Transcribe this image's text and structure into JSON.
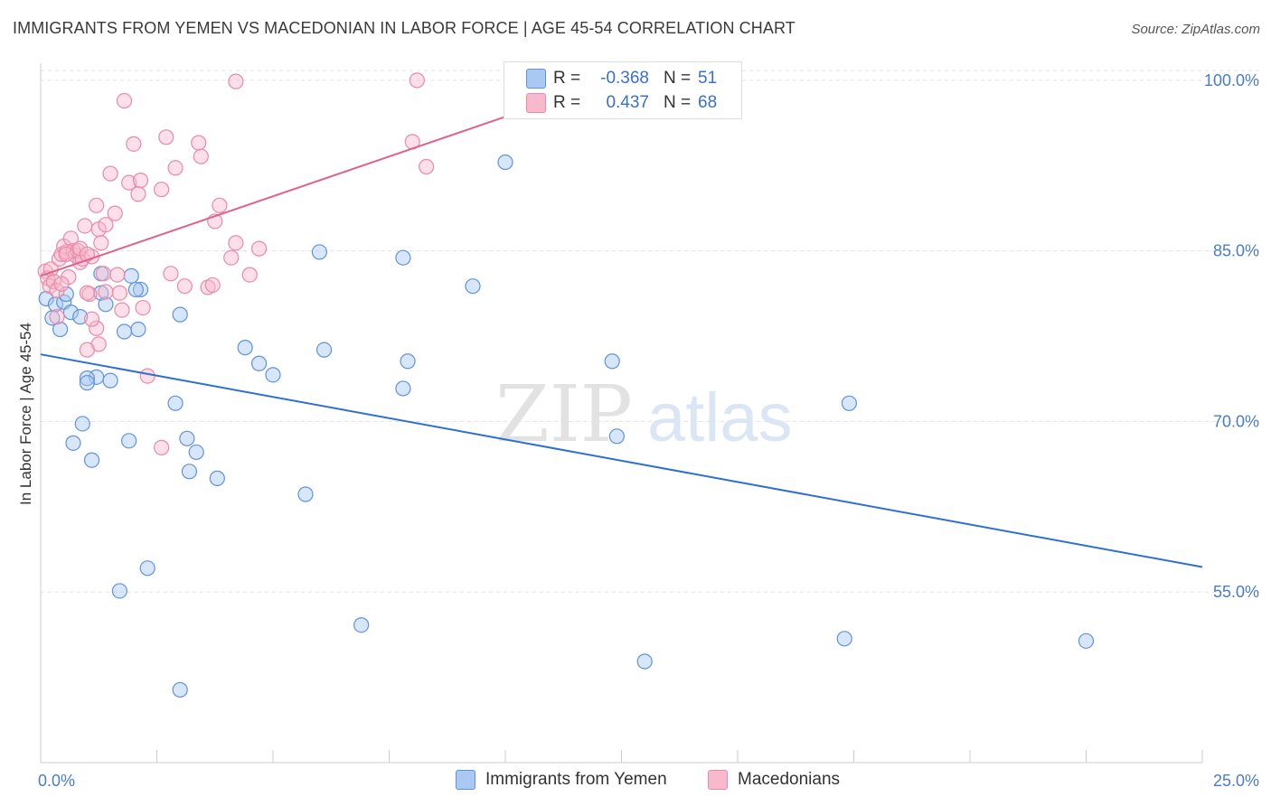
{
  "title": "IMMIGRANTS FROM YEMEN VS MACEDONIAN IN LABOR FORCE | AGE 45-54 CORRELATION CHART",
  "source": "Source: ZipAtlas.com",
  "watermark": {
    "zip": "ZIP",
    "atlas": "atlas"
  },
  "colors": {
    "blue_fill": "#a9c8f2",
    "blue_stroke": "#5f93d9",
    "blue_line": "#2f6fd0",
    "pink_fill": "#f8b9cc",
    "pink_stroke": "#e88aa8",
    "pink_line": "#e0628c",
    "grid": "#e3e3e3",
    "axis": "#cccccc",
    "tick_text": "#4a7cc9"
  },
  "stats": {
    "blue": {
      "r_label": "R =",
      "r_value": "-0.368",
      "n_label": "N =",
      "n_value": "51"
    },
    "pink": {
      "r_label": "R =",
      "r_value": "0.437",
      "n_label": "N =",
      "n_value": "68"
    }
  },
  "legend": {
    "blue": "Immigrants from Yemen",
    "pink": "Macedonians"
  },
  "chart_data": {
    "type": "scatter",
    "xlabel": "",
    "ylabel": "In Labor Force | Age 45-54",
    "xlim": [
      0,
      25
    ],
    "ylim": [
      40,
      101.5
    ],
    "x_tick_labels": [
      "0.0%",
      "25.0%"
    ],
    "y_ticks": [
      55,
      70,
      85,
      100
    ],
    "y_tick_labels": [
      "55.0%",
      "70.0%",
      "85.0%",
      "100.0%"
    ],
    "series": [
      {
        "name": "Immigrants from Yemen",
        "color": "blue",
        "r": -0.368,
        "n": 51,
        "trend": {
          "x0": 0,
          "y0": 75.9,
          "x1": 25,
          "y1": 57.2
        },
        "points": [
          [
            0.12,
            80.8
          ],
          [
            0.25,
            79.1
          ],
          [
            0.32,
            80.3
          ],
          [
            0.42,
            78.1
          ],
          [
            0.5,
            80.5
          ],
          [
            0.55,
            81.2
          ],
          [
            0.65,
            79.6
          ],
          [
            0.85,
            79.2
          ],
          [
            1.3,
            81.3
          ],
          [
            1.4,
            80.3
          ],
          [
            1.3,
            83.0
          ],
          [
            1.5,
            73.6
          ],
          [
            1.2,
            73.9
          ],
          [
            1.0,
            73.8
          ],
          [
            1.0,
            73.4
          ],
          [
            0.9,
            69.8
          ],
          [
            0.7,
            68.1
          ],
          [
            1.1,
            66.6
          ],
          [
            1.8,
            77.9
          ],
          [
            2.1,
            78.1
          ],
          [
            1.95,
            82.8
          ],
          [
            2.15,
            81.6
          ],
          [
            2.05,
            81.6
          ],
          [
            3.0,
            79.4
          ],
          [
            2.9,
            71.6
          ],
          [
            3.15,
            68.5
          ],
          [
            3.35,
            67.3
          ],
          [
            3.2,
            65.6
          ],
          [
            3.8,
            65.0
          ],
          [
            1.9,
            68.3
          ],
          [
            4.4,
            76.5
          ],
          [
            4.7,
            75.1
          ],
          [
            5.0,
            74.1
          ],
          [
            6.0,
            84.9
          ],
          [
            6.1,
            76.3
          ],
          [
            7.8,
            84.4
          ],
          [
            7.9,
            75.3
          ],
          [
            7.8,
            72.9
          ],
          [
            9.3,
            81.9
          ],
          [
            10.0,
            92.8
          ],
          [
            12.3,
            75.3
          ],
          [
            12.4,
            68.7
          ],
          [
            5.7,
            63.6
          ],
          [
            2.3,
            57.1
          ],
          [
            1.7,
            55.1
          ],
          [
            3.0,
            46.4
          ],
          [
            6.9,
            52.1
          ],
          [
            13.0,
            48.9
          ],
          [
            17.4,
            71.6
          ],
          [
            17.3,
            50.9
          ],
          [
            22.5,
            50.7
          ]
        ]
      },
      {
        "name": "Macedonians",
        "color": "pink",
        "r": 0.437,
        "n": 68,
        "trend": {
          "x0": 0,
          "y0": 82.8,
          "x1": 10.0,
          "y1": 96.8
        },
        "points": [
          [
            0.1,
            83.2
          ],
          [
            0.15,
            82.6
          ],
          [
            0.2,
            81.9
          ],
          [
            0.22,
            83.4
          ],
          [
            0.28,
            82.3
          ],
          [
            0.35,
            81.5
          ],
          [
            0.4,
            84.3
          ],
          [
            0.45,
            84.7
          ],
          [
            0.5,
            85.4
          ],
          [
            0.55,
            84.9
          ],
          [
            0.6,
            82.7
          ],
          [
            0.65,
            86.1
          ],
          [
            0.7,
            85.0
          ],
          [
            0.75,
            84.6
          ],
          [
            0.8,
            85.0
          ],
          [
            0.85,
            84.0
          ],
          [
            0.9,
            84.3
          ],
          [
            0.95,
            87.2
          ],
          [
            1.05,
            81.2
          ],
          [
            1.1,
            84.5
          ],
          [
            1.2,
            89.0
          ],
          [
            1.25,
            86.9
          ],
          [
            1.3,
            85.7
          ],
          [
            1.35,
            83.0
          ],
          [
            1.4,
            87.3
          ],
          [
            1.5,
            91.8
          ],
          [
            1.6,
            88.3
          ],
          [
            1.65,
            82.9
          ],
          [
            1.7,
            81.3
          ],
          [
            1.2,
            78.2
          ],
          [
            1.25,
            76.8
          ],
          [
            1.0,
            76.3
          ],
          [
            1.1,
            79.0
          ],
          [
            1.8,
            98.2
          ],
          [
            1.9,
            91.0
          ],
          [
            2.0,
            94.4
          ],
          [
            2.1,
            90.0
          ],
          [
            2.15,
            91.2
          ],
          [
            2.2,
            80.0
          ],
          [
            2.3,
            74.0
          ],
          [
            2.6,
            90.4
          ],
          [
            2.7,
            95.0
          ],
          [
            2.8,
            83.0
          ],
          [
            2.9,
            92.3
          ],
          [
            3.1,
            81.9
          ],
          [
            3.4,
            94.5
          ],
          [
            3.45,
            93.3
          ],
          [
            3.6,
            81.8
          ],
          [
            3.7,
            82.0
          ],
          [
            3.75,
            87.6
          ],
          [
            3.85,
            89.0
          ],
          [
            4.1,
            84.4
          ],
          [
            4.2,
            85.7
          ],
          [
            4.5,
            82.9
          ],
          [
            4.7,
            85.2
          ],
          [
            2.6,
            67.7
          ],
          [
            4.2,
            99.9
          ],
          [
            8.1,
            100.0
          ],
          [
            8.0,
            94.6
          ],
          [
            8.3,
            92.4
          ],
          [
            1.0,
            81.3
          ],
          [
            0.35,
            79.2
          ],
          [
            1.75,
            79.8
          ],
          [
            1.4,
            81.4
          ],
          [
            0.55,
            84.7
          ],
          [
            0.85,
            85.2
          ],
          [
            1.0,
            84.7
          ],
          [
            0.45,
            82.1
          ]
        ]
      }
    ]
  }
}
